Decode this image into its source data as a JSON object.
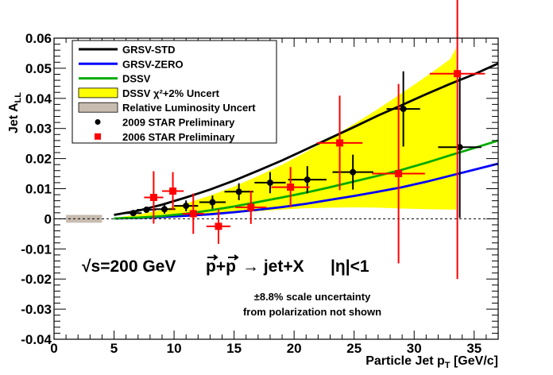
{
  "chart_data": {
    "type": "scatter",
    "xlabel": "Particle Jet p",
    "xlabel_sub": "T",
    "xlabel_units": " [GeV/c]",
    "ylabel": "Jet A",
    "ylabel_sub": "LL",
    "xlim": [
      0,
      37
    ],
    "ylim": [
      -0.04,
      0.06
    ],
    "xticks": [
      0,
      5,
      10,
      15,
      20,
      25,
      30,
      35
    ],
    "yticks": [
      -0.04,
      -0.03,
      -0.02,
      -0.01,
      0,
      0.01,
      0.02,
      0.03,
      0.04,
      0.05,
      0.06
    ],
    "xtick_labels": [
      "0",
      "5",
      "10",
      "15",
      "20",
      "25",
      "30",
      "35"
    ],
    "ytick_labels": [
      "-0.04",
      "-0.03",
      "-0.02",
      "-0.01",
      "0",
      "0.01",
      "0.02",
      "0.03",
      "0.04",
      "0.05",
      "0.06"
    ],
    "zero_line": true,
    "curves": [
      {
        "name": "GRSV-STD",
        "color": "#000000",
        "x": [
          5,
          7,
          9,
          11,
          13,
          15,
          17,
          19,
          21,
          23,
          25,
          27,
          29,
          31,
          33,
          35,
          37
        ],
        "y": [
          0.0013,
          0.0027,
          0.0047,
          0.0071,
          0.0097,
          0.0127,
          0.016,
          0.0194,
          0.0231,
          0.0268,
          0.0305,
          0.0343,
          0.0378,
          0.0414,
          0.0448,
          0.048,
          0.0516
        ]
      },
      {
        "name": "GRSV-ZERO",
        "color": "#0000ff",
        "x": [
          5,
          7,
          9,
          11,
          13,
          15,
          17,
          19,
          21,
          23,
          25,
          27,
          29,
          31,
          33,
          35,
          37
        ],
        "y": [
          0.0001,
          0.0003,
          0.0006,
          0.001,
          0.0015,
          0.0022,
          0.003,
          0.0039,
          0.005,
          0.0063,
          0.0076,
          0.009,
          0.0105,
          0.0123,
          0.0143,
          0.0163,
          0.0183
        ]
      },
      {
        "name": "DSSV",
        "color": "#00aa00",
        "x": [
          5,
          7,
          9,
          11,
          13,
          15,
          17,
          19,
          21,
          23,
          25,
          27,
          29,
          31,
          33,
          35,
          37
        ],
        "y": [
          0.0001,
          0.0004,
          0.0009,
          0.0017,
          0.0028,
          0.0041,
          0.0056,
          0.0071,
          0.0087,
          0.0105,
          0.0124,
          0.0143,
          0.0163,
          0.0186,
          0.0211,
          0.0235,
          0.026
        ]
      }
    ],
    "band": {
      "name": "DSSV χ²+2% Uncert",
      "color": "#ffff00",
      "x": [
        5,
        7,
        9,
        11,
        13,
        15,
        17,
        19,
        21,
        23,
        25,
        27,
        29,
        31,
        33,
        33.5
      ],
      "upper": [
        0.0003,
        0.0014,
        0.003,
        0.0051,
        0.0077,
        0.0107,
        0.0142,
        0.018,
        0.0222,
        0.0267,
        0.0315,
        0.0365,
        0.0418,
        0.0473,
        0.053,
        0.0567
      ],
      "lower": [
        0.0,
        0.0,
        0.0002,
        0.0006,
        0.0012,
        0.0019,
        0.0025,
        0.0031,
        0.0035,
        0.0037,
        0.0038,
        0.0037,
        0.0034,
        0.0032,
        0.0031,
        0.0031
      ]
    },
    "luminosity_band": {
      "name": "Relative Luminosity Uncert",
      "color": "#c8bcb0",
      "x_range": [
        1,
        4
      ],
      "y_range": [
        -0.0013,
        0.0013
      ]
    },
    "series": [
      {
        "name": "2009 STAR Preliminary",
        "color": "#000000",
        "marker": "circle",
        "points": [
          {
            "x": 6.6,
            "y": 0.0019,
            "xerr": 0.7,
            "yerr": 0.001
          },
          {
            "x": 7.7,
            "y": 0.003,
            "xerr": 0.8,
            "yerr": 0.001
          },
          {
            "x": 9.2,
            "y": 0.0032,
            "xerr": 0.9,
            "yerr": 0.0015
          },
          {
            "x": 11.0,
            "y": 0.0043,
            "xerr": 1.0,
            "yerr": 0.0018
          },
          {
            "x": 13.2,
            "y": 0.0055,
            "xerr": 1.1,
            "yerr": 0.0022
          },
          {
            "x": 15.4,
            "y": 0.009,
            "xerr": 1.2,
            "yerr": 0.0028
          },
          {
            "x": 18.0,
            "y": 0.012,
            "xerr": 1.3,
            "yerr": 0.0035
          },
          {
            "x": 21.1,
            "y": 0.013,
            "xerr": 1.6,
            "yerr": 0.0045
          },
          {
            "x": 24.9,
            "y": 0.0155,
            "xerr": 1.7,
            "yerr": 0.0058
          },
          {
            "x": 29.1,
            "y": 0.0365,
            "xerr": 1.4,
            "yerr": 0.0125
          },
          {
            "x": 33.8,
            "y": 0.0238,
            "xerr": 1.8,
            "yerr": 0.0235
          }
        ]
      },
      {
        "name": "2006 STAR Preliminary",
        "color": "#ff0000",
        "marker": "square",
        "points": [
          {
            "x": 8.3,
            "y": 0.0071,
            "xerr": 0.8,
            "yerr": 0.0087
          },
          {
            "x": 9.9,
            "y": 0.0092,
            "xerr": 0.9,
            "yerr": 0.0063
          },
          {
            "x": 11.6,
            "y": 0.0017,
            "xerr": 0.9,
            "yerr": 0.0067
          },
          {
            "x": 13.7,
            "y": -0.0025,
            "xerr": 1.0,
            "yerr": 0.0058
          },
          {
            "x": 16.4,
            "y": 0.0038,
            "xerr": 1.3,
            "yerr": 0.0055
          },
          {
            "x": 19.7,
            "y": 0.0105,
            "xerr": 1.6,
            "yerr": 0.0067
          },
          {
            "x": 23.8,
            "y": 0.0252,
            "xerr": 1.9,
            "yerr": 0.0157
          },
          {
            "x": 28.7,
            "y": 0.015,
            "xerr": 2.2,
            "yerr": 0.0298
          },
          {
            "x": 33.6,
            "y": 0.0482,
            "xerr": 2.3,
            "yerr": 0.0682
          }
        ]
      }
    ],
    "legend": {
      "position": "top-left",
      "items": [
        {
          "label": "GRSV-STD",
          "kind": "line",
          "color": "#000000"
        },
        {
          "label": "GRSV-ZERO",
          "kind": "line",
          "color": "#0000ff"
        },
        {
          "label": "DSSV",
          "kind": "line",
          "color": "#00aa00"
        },
        {
          "label": "DSSV χ²+2% Uncert",
          "kind": "box",
          "color": "#ffff00"
        },
        {
          "label": "Relative Luminosity Uncert",
          "kind": "box",
          "color": "#c8bcb0"
        },
        {
          "label": "2009 STAR Preliminary",
          "kind": "circle",
          "color": "#000000"
        },
        {
          "label": "2006 STAR Preliminary",
          "kind": "square",
          "color": "#ff0000"
        }
      ]
    },
    "annotations": {
      "energy": "√s=200 GeV",
      "reaction_lhs": "p+p",
      "reaction_rhs": "→ jet+X",
      "eta": "|η|<1",
      "scale_note_line1": "±8.8% scale uncertainty",
      "scale_note_line2": "from polarization not shown"
    }
  }
}
